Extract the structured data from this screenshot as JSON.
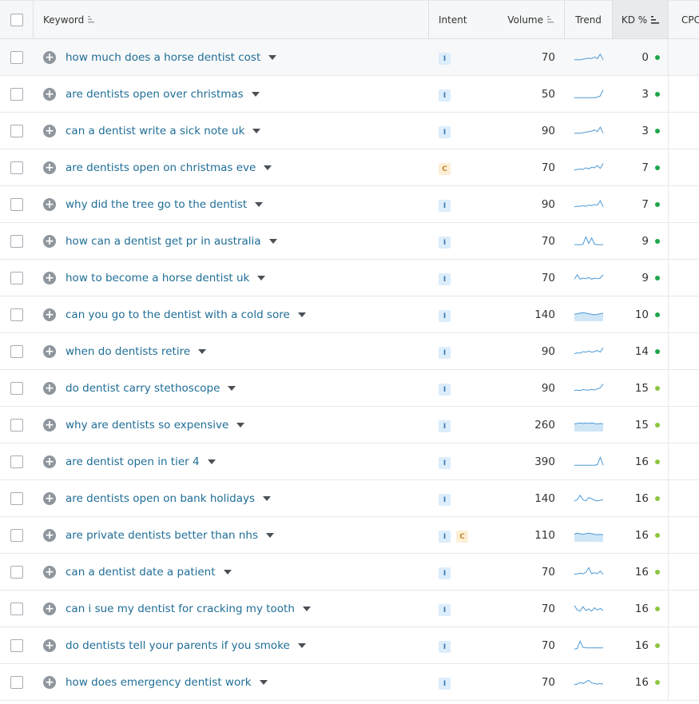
{
  "header": {
    "keyword": "Keyword",
    "intent": "Intent",
    "volume": "Volume",
    "trend": "Trend",
    "kd": "KD %",
    "cpc": "CPC"
  },
  "colors": {
    "kd_easy": "#1ea54b",
    "kd_light": "#8cc63f",
    "link": "#1f6d96"
  },
  "rows": [
    {
      "keyword": "how much does a horse dentist cost",
      "intent": [
        "I"
      ],
      "volume": "70",
      "kd": "0",
      "level": "easy",
      "trend": [
        0.3,
        0.3,
        0.3,
        0.35,
        0.4,
        0.45,
        0.4,
        0.55,
        0.4,
        0.8,
        0.3
      ],
      "fill": false
    },
    {
      "keyword": "are dentists open over christmas",
      "intent": [
        "I"
      ],
      "volume": "50",
      "kd": "3",
      "level": "easy",
      "trend": [
        0.2,
        0.2,
        0.2,
        0.2,
        0.2,
        0.2,
        0.2,
        0.2,
        0.25,
        0.35,
        0.9
      ],
      "fill": false
    },
    {
      "keyword": "can a dentist write a sick note uk",
      "intent": [
        "I"
      ],
      "volume": "90",
      "kd": "3",
      "level": "easy",
      "trend": [
        0.3,
        0.3,
        0.3,
        0.35,
        0.4,
        0.45,
        0.5,
        0.6,
        0.45,
        0.85,
        0.3
      ],
      "fill": false
    },
    {
      "keyword": "are dentists open on christmas eve",
      "intent": [
        "C"
      ],
      "volume": "70",
      "kd": "7",
      "level": "easy",
      "trend": [
        0.3,
        0.35,
        0.4,
        0.35,
        0.5,
        0.4,
        0.55,
        0.5,
        0.7,
        0.45,
        0.9
      ],
      "fill": false
    },
    {
      "keyword": "why did the tree go to the dentist",
      "intent": [
        "I"
      ],
      "volume": "90",
      "kd": "7",
      "level": "easy",
      "trend": [
        0.3,
        0.35,
        0.35,
        0.4,
        0.35,
        0.45,
        0.4,
        0.5,
        0.45,
        0.85,
        0.3
      ],
      "fill": false
    },
    {
      "keyword": "how can a dentist get pr in australia",
      "intent": [
        "I"
      ],
      "volume": "70",
      "kd": "9",
      "level": "easy",
      "trend": [
        0.2,
        0.2,
        0.2,
        0.25,
        0.9,
        0.3,
        0.8,
        0.25,
        0.2,
        0.2,
        0.2
      ],
      "fill": false
    },
    {
      "keyword": "how to become a horse dentist uk",
      "intent": [
        "I"
      ],
      "volume": "70",
      "kd": "9",
      "level": "easy",
      "trend": [
        0.4,
        0.8,
        0.4,
        0.5,
        0.45,
        0.55,
        0.4,
        0.5,
        0.45,
        0.5,
        0.8
      ],
      "fill": false
    },
    {
      "keyword": "can you go to the dentist with a cold sore",
      "intent": [
        "I"
      ],
      "volume": "140",
      "kd": "10",
      "level": "easy",
      "trend": [
        0.55,
        0.6,
        0.65,
        0.7,
        0.65,
        0.6,
        0.55,
        0.5,
        0.55,
        0.6,
        0.65
      ],
      "fill": true
    },
    {
      "keyword": "when do dentists retire",
      "intent": [
        "I"
      ],
      "volume": "90",
      "kd": "14",
      "level": "easy",
      "trend": [
        0.3,
        0.4,
        0.35,
        0.5,
        0.45,
        0.55,
        0.45,
        0.5,
        0.6,
        0.45,
        0.85
      ],
      "fill": false
    },
    {
      "keyword": "do dentist carry stethoscope",
      "intent": [
        "I"
      ],
      "volume": "90",
      "kd": "15",
      "level": "light",
      "trend": [
        0.3,
        0.35,
        0.3,
        0.4,
        0.35,
        0.35,
        0.4,
        0.35,
        0.45,
        0.55,
        0.9
      ],
      "fill": false
    },
    {
      "keyword": "why are dentists so expensive",
      "intent": [
        "I"
      ],
      "volume": "260",
      "kd": "15",
      "level": "light",
      "trend": [
        0.6,
        0.65,
        0.7,
        0.65,
        0.7,
        0.65,
        0.7,
        0.65,
        0.6,
        0.65,
        0.6
      ],
      "fill": true
    },
    {
      "keyword": "are dentist open in tier 4",
      "intent": [
        "I"
      ],
      "volume": "390",
      "kd": "16",
      "level": "light",
      "trend": [
        0.2,
        0.2,
        0.2,
        0.2,
        0.2,
        0.2,
        0.2,
        0.2,
        0.25,
        0.9,
        0.2
      ],
      "fill": false
    },
    {
      "keyword": "are dentists open on bank holidays",
      "intent": [
        "I"
      ],
      "volume": "140",
      "kd": "16",
      "level": "light",
      "trend": [
        0.3,
        0.4,
        0.8,
        0.4,
        0.3,
        0.6,
        0.5,
        0.35,
        0.3,
        0.35,
        0.4
      ],
      "fill": false
    },
    {
      "keyword": "are private dentists better than nhs",
      "intent": [
        "I",
        "C"
      ],
      "volume": "110",
      "kd": "16",
      "level": "light",
      "trend": [
        0.6,
        0.7,
        0.65,
        0.6,
        0.65,
        0.7,
        0.65,
        0.6,
        0.55,
        0.6,
        0.55
      ],
      "fill": true
    },
    {
      "keyword": "can a dentist date a patient",
      "intent": [
        "I"
      ],
      "volume": "70",
      "kd": "16",
      "level": "light",
      "trend": [
        0.3,
        0.35,
        0.4,
        0.35,
        0.5,
        0.9,
        0.35,
        0.45,
        0.35,
        0.6,
        0.3
      ],
      "fill": false
    },
    {
      "keyword": "can i sue my dentist for cracking my tooth",
      "intent": [
        "I"
      ],
      "volume": "70",
      "kd": "16",
      "level": "light",
      "trend": [
        0.8,
        0.4,
        0.3,
        0.7,
        0.35,
        0.5,
        0.3,
        0.6,
        0.4,
        0.55,
        0.35
      ],
      "fill": false
    },
    {
      "keyword": "do dentists tell your parents if you smoke",
      "intent": [
        "I"
      ],
      "volume": "70",
      "kd": "16",
      "level": "light",
      "trend": [
        0.2,
        0.25,
        0.9,
        0.35,
        0.3,
        0.3,
        0.3,
        0.3,
        0.3,
        0.3,
        0.3
      ],
      "fill": false
    },
    {
      "keyword": "how does emergency dentist work",
      "intent": [
        "I"
      ],
      "volume": "70",
      "kd": "16",
      "level": "light",
      "trend": [
        0.3,
        0.35,
        0.5,
        0.4,
        0.55,
        0.7,
        0.45,
        0.4,
        0.35,
        0.4,
        0.35
      ],
      "fill": false
    }
  ]
}
